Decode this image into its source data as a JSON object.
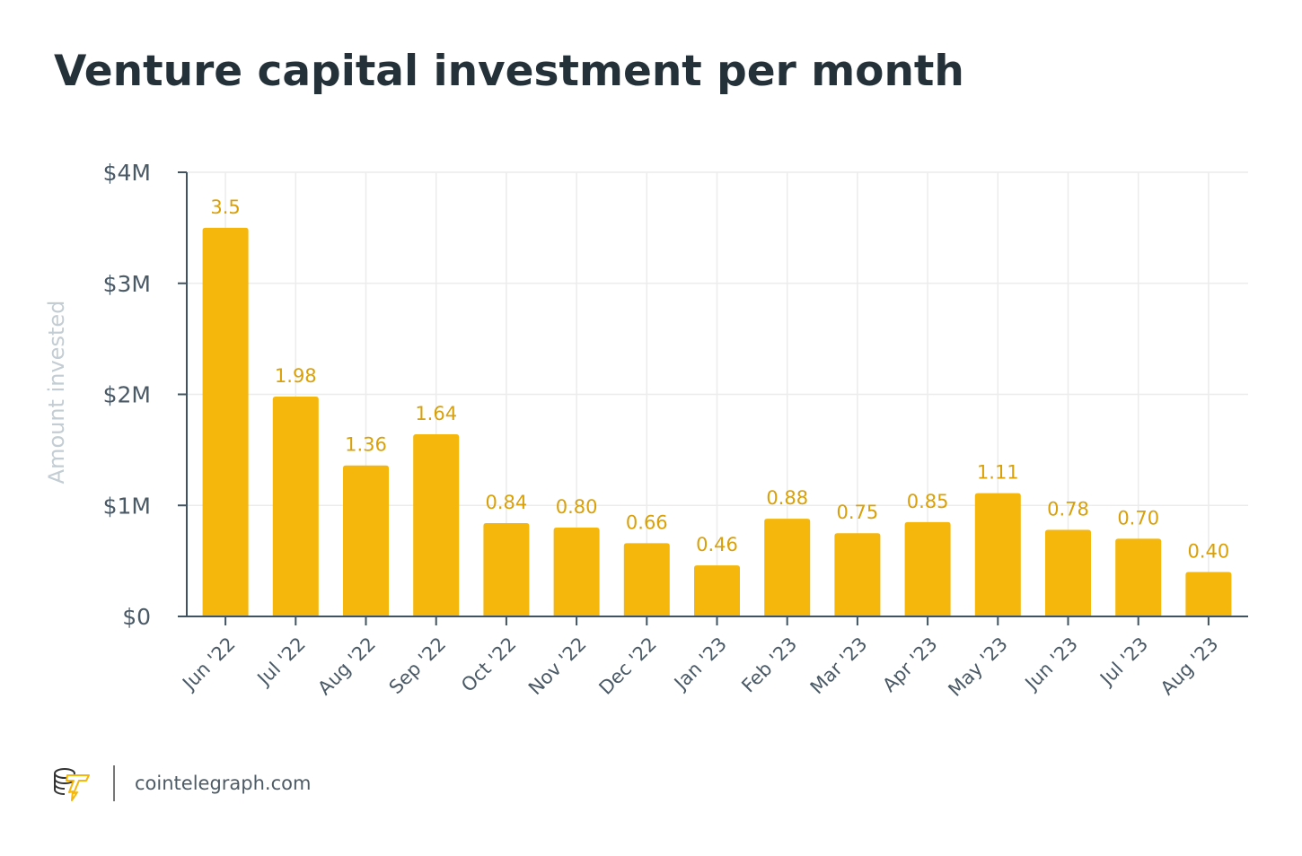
{
  "chart_data": {
    "type": "bar",
    "title": "Venture capital investment per month",
    "ylabel": "Amount invested",
    "xlabel": "",
    "categories": [
      "Jun '22",
      "Jul '22",
      "Aug '22",
      "Sep '22",
      "Oct '22",
      "Nov '22",
      "Dec '22",
      "Jan '23",
      "Feb '23",
      "Mar '23",
      "Apr '23",
      "May '23",
      "Jun '23",
      "Jul '23",
      "Aug '23"
    ],
    "values": [
      3.5,
      1.98,
      1.36,
      1.64,
      0.84,
      0.8,
      0.66,
      0.46,
      0.88,
      0.75,
      0.85,
      1.11,
      0.78,
      0.7,
      0.4
    ],
    "data_labels": [
      "3.5",
      "1.98",
      "1.36",
      "1.64",
      "0.84",
      "0.80",
      "0.66",
      "0.46",
      "0.88",
      "0.75",
      "0.85",
      "1.11",
      "0.78",
      "0.70",
      "0.40"
    ],
    "ylim": [
      0,
      4
    ],
    "yticks": [
      0,
      1,
      2,
      3,
      4
    ],
    "ytick_labels": [
      "$0",
      "$1M",
      "$2M",
      "$3M",
      "$4M"
    ],
    "grid": true,
    "colors": {
      "bar": "#f5b70b",
      "data_label": "#d9a00a",
      "axis": "#3f5361",
      "tick_label": "#4a5966",
      "ylabel": "#c3cdd3",
      "grid": "#ececec"
    }
  },
  "footer": {
    "site": "cointelegraph.com",
    "logo": "cointelegraph-logo"
  }
}
